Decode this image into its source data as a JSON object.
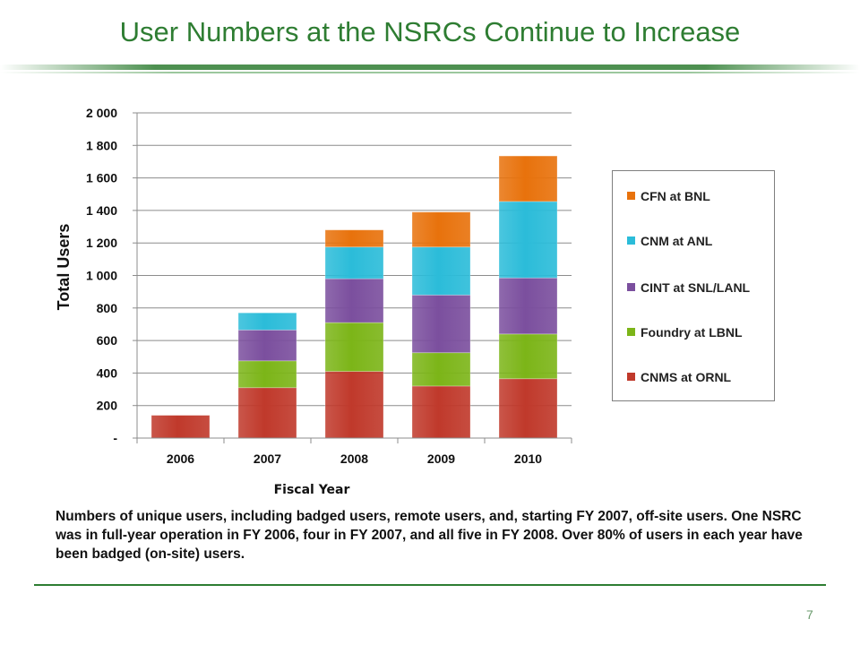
{
  "slide": {
    "title": "User Numbers at the NSRCs Continue to Increase",
    "caption": "Numbers of unique users, including badged users, remote users, and, starting FY 2007, off-site users.  One NSRC was in full-year operation in FY 2006, four in FY 2007, and all five in FY 2008.  Over 80% of users in each year have been badged (on-site) users.",
    "page_number": "7"
  },
  "colors": {
    "title": "#2e7d32",
    "CNMS at ORNL": "#c0392b",
    "Foundry at LBNL": "#7cb518",
    "CINT at SNL/LANL": "#7b4f9e",
    "CNM at ANL": "#2bbcd9",
    "CFN at BNL": "#e8720c"
  },
  "chart_data": {
    "type": "bar",
    "stacked": true,
    "categories": [
      "2006",
      "2007",
      "2008",
      "2009",
      "2010"
    ],
    "xlabel": "Fiscal Year",
    "ylabel": "Total Users",
    "ylim": [
      0,
      2000
    ],
    "yticks": [
      0,
      200,
      400,
      600,
      800,
      1000,
      1200,
      1400,
      1600,
      1800,
      2000
    ],
    "ytick_labels": [
      "-",
      "200",
      "400",
      "600",
      "800",
      "1 000",
      "1 200",
      "1 400",
      "1 600",
      "1 800",
      "2 000"
    ],
    "grid": true,
    "legend_position": "right",
    "series": [
      {
        "name": "CNMS at ORNL",
        "values": [
          140,
          310,
          410,
          320,
          365
        ]
      },
      {
        "name": "Foundry at LBNL",
        "values": [
          0,
          165,
          300,
          205,
          275
        ]
      },
      {
        "name": "CINT at SNL/LANL",
        "values": [
          0,
          190,
          270,
          355,
          345
        ]
      },
      {
        "name": "CNM at ANL",
        "values": [
          0,
          105,
          195,
          295,
          470
        ]
      },
      {
        "name": "CFN at BNL",
        "values": [
          0,
          0,
          105,
          215,
          280
        ]
      }
    ],
    "legend_order": [
      "CFN at BNL",
      "CNM at ANL",
      "CINT at SNL/LANL",
      "Foundry at LBNL",
      "CNMS at ORNL"
    ]
  }
}
